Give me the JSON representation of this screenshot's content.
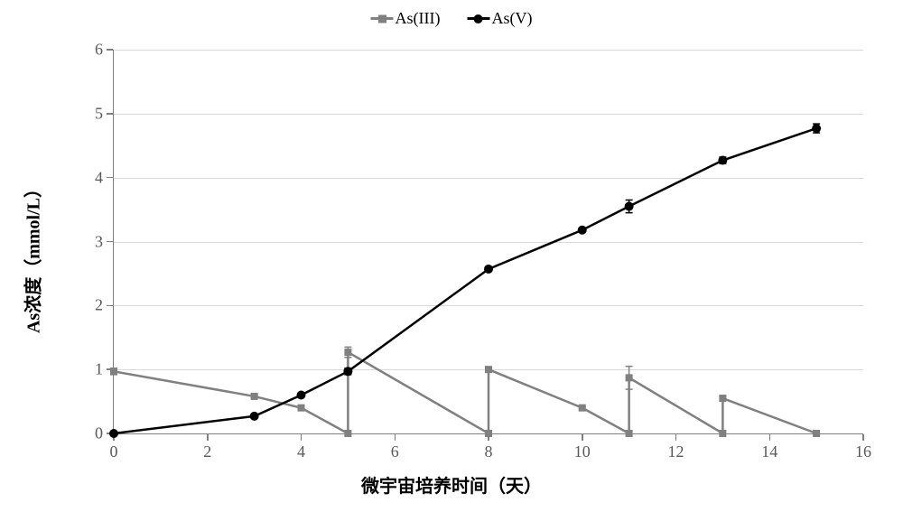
{
  "chart": {
    "type": "line",
    "legend": {
      "series1": {
        "label": "As(III)",
        "color": "#808080",
        "marker": "square"
      },
      "series2": {
        "label": "As(V)",
        "color": "#000000",
        "marker": "circle"
      }
    },
    "ylabel_prefix": "As",
    "ylabel_mid": "浓度（",
    "ylabel_unit": "mmol/L",
    "ylabel_suffix": "）",
    "xlabel": "微宇宙培养时间（天）",
    "xlim": [
      0,
      16
    ],
    "ylim": [
      0,
      6
    ],
    "xtick_step": 2,
    "ytick_step": 1,
    "xticks": [
      0,
      2,
      4,
      6,
      8,
      10,
      12,
      14,
      16
    ],
    "yticks": [
      0,
      1,
      2,
      3,
      4,
      5,
      6
    ],
    "grid_color": "#d9d9d9",
    "axis_color": "#808080",
    "tick_label_color": "#595959",
    "background_color": "#ffffff",
    "marker_size": 8,
    "line_width": 2.5,
    "tick_fontsize": 18,
    "label_fontsize": 20,
    "legend_fontsize": 18,
    "series1": {
      "name": "As(III)",
      "color": "#808080",
      "marker": "square",
      "x": [
        0,
        3,
        4,
        5,
        5,
        8,
        8,
        10,
        11,
        11,
        13,
        13,
        15
      ],
      "y": [
        0.97,
        0.58,
        0.4,
        0.0,
        1.27,
        0.0,
        1.0,
        0.4,
        0.0,
        0.87,
        0.0,
        0.55,
        0.0
      ],
      "err": [
        0.05,
        0.02,
        0.02,
        0.0,
        0.08,
        0.0,
        0.03,
        0.02,
        0.0,
        0.18,
        0.0,
        0.03,
        0.0
      ]
    },
    "series2": {
      "name": "As(V)",
      "color": "#000000",
      "marker": "circle",
      "x": [
        0,
        3,
        4,
        5,
        8,
        10,
        11,
        13,
        15
      ],
      "y": [
        0.0,
        0.27,
        0.6,
        0.97,
        2.57,
        3.18,
        3.55,
        4.27,
        4.77
      ],
      "err": [
        0.0,
        0.02,
        0.03,
        0.05,
        0.03,
        0.03,
        0.1,
        0.05,
        0.07
      ]
    }
  }
}
